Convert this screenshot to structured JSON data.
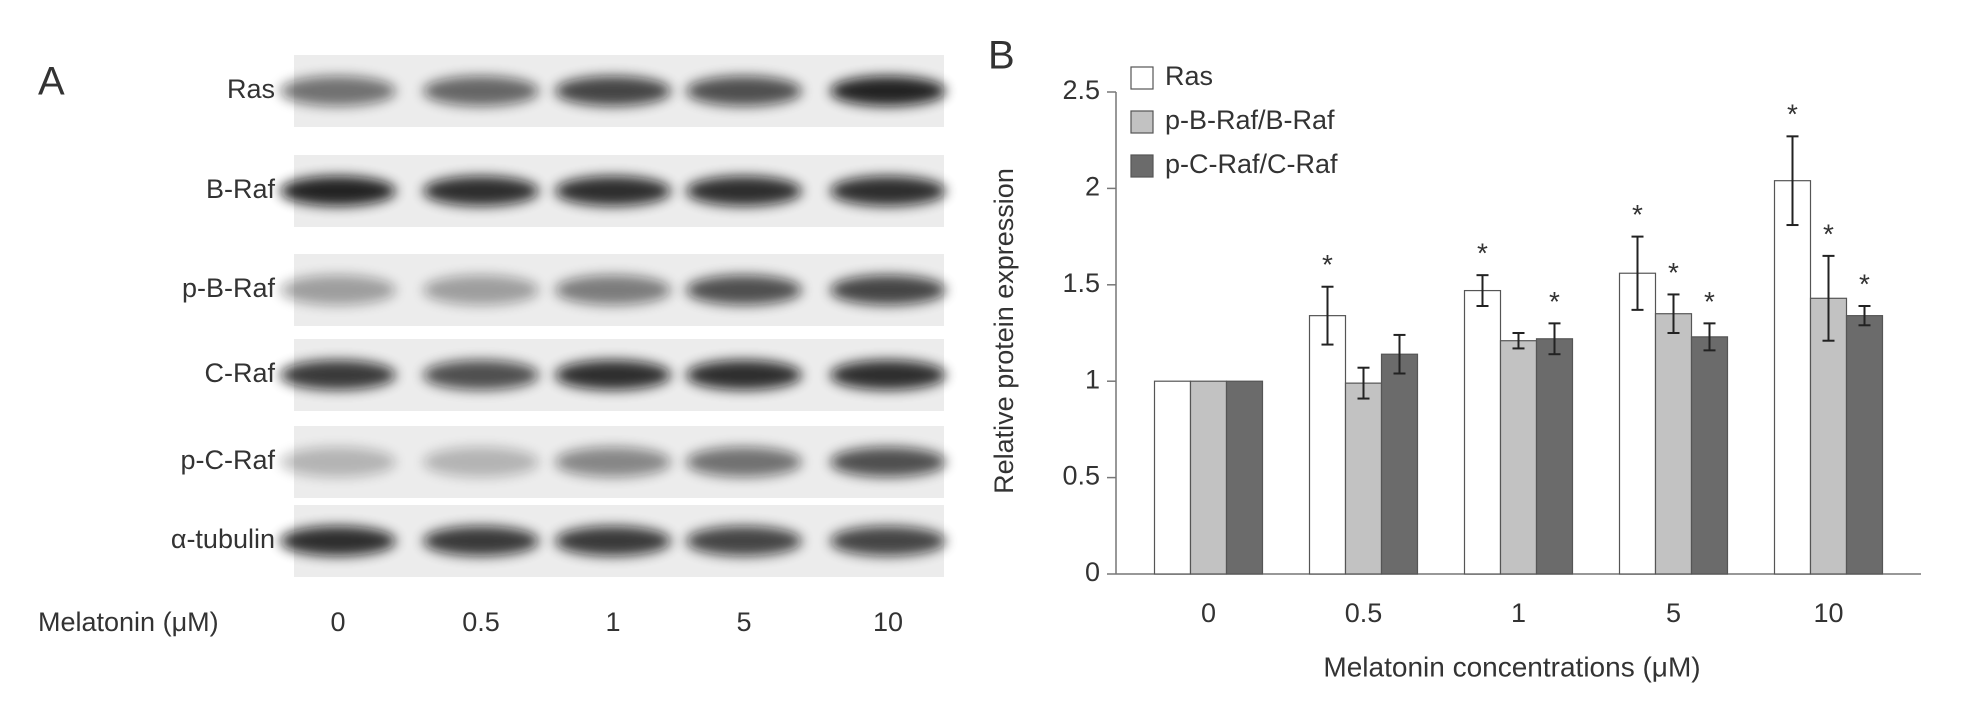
{
  "panel_a": {
    "panel_label": "A",
    "rows": [
      "Ras",
      "B-Raf",
      "p-B-Raf",
      "C-Raf",
      "p-C-Raf",
      "α-tubulin"
    ],
    "lane_axis_label": "Melatonin (μM)",
    "lanes": [
      "0",
      "0.5",
      "1",
      "5",
      "10"
    ]
  },
  "chart_data": {
    "type": "bar",
    "panel_label": "B",
    "y_label": "Relative protein expression",
    "x_label": "Melatonin concentrations (μM)",
    "categories": [
      "0",
      "0.5",
      "1",
      "5",
      "10"
    ],
    "ylim": [
      0,
      2.5
    ],
    "yticks": [
      0,
      0.5,
      1,
      1.5,
      2,
      2.5
    ],
    "legend": "top-left",
    "series": [
      {
        "name": "Ras",
        "color": "#ffffff",
        "values": [
          1,
          1.34,
          1.47,
          1.56,
          2.04
        ],
        "errors": [
          0,
          0.15,
          0.08,
          0.19,
          0.23
        ],
        "annotations": [
          null,
          "*",
          "*",
          "*",
          "*"
        ]
      },
      {
        "name": "p-B-Raf/B-Raf",
        "color": "#c2c2c2",
        "values": [
          1,
          0.99,
          1.21,
          1.35,
          1.43
        ],
        "errors": [
          0,
          0.08,
          0.04,
          0.1,
          0.22
        ],
        "annotations": [
          null,
          null,
          null,
          "*",
          "*"
        ]
      },
      {
        "name": "p-C-Raf/C-Raf",
        "color": "#6b6b6b",
        "values": [
          1,
          1.14,
          1.22,
          1.23,
          1.34
        ],
        "errors": [
          0,
          0.1,
          0.08,
          0.07,
          0.05
        ],
        "annotations": [
          null,
          null,
          "*",
          "*",
          "*"
        ]
      }
    ]
  }
}
